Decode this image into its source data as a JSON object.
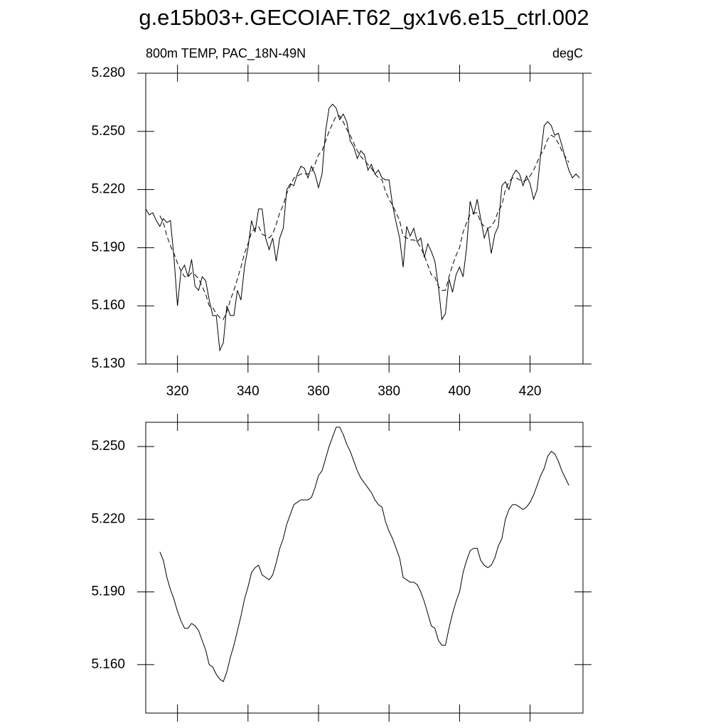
{
  "chart_data": [
    {
      "type": "line",
      "title": "g.e15b03+.GECOIAF.T62_gx1v6.e15_ctrl.002",
      "subtitle_left": "800m TEMP, PAC_18N-49N",
      "subtitle_right": "degC",
      "x": [
        311,
        312,
        313,
        314,
        315,
        316,
        317,
        318,
        319,
        320,
        321,
        322,
        323,
        324,
        325,
        326,
        327,
        328,
        329,
        330,
        331,
        332,
        333,
        334,
        335,
        336,
        337,
        338,
        339,
        340,
        341,
        342,
        343,
        344,
        345,
        346,
        347,
        348,
        349,
        350,
        351,
        352,
        353,
        354,
        355,
        356,
        357,
        358,
        359,
        360,
        361,
        362,
        363,
        364,
        365,
        366,
        367,
        368,
        369,
        370,
        371,
        372,
        373,
        374,
        375,
        376,
        377,
        378,
        379,
        380,
        381,
        382,
        383,
        384,
        385,
        386,
        387,
        388,
        389,
        390,
        391,
        392,
        393,
        394,
        395,
        396,
        397,
        398,
        399,
        400,
        401,
        402,
        403,
        404,
        405,
        406,
        407,
        408,
        409,
        410,
        411,
        412,
        413,
        414,
        415,
        416,
        417,
        418,
        419,
        420,
        421,
        422,
        423,
        424,
        425,
        426,
        427,
        428,
        429,
        430,
        431,
        432,
        433,
        434
      ],
      "series": [
        {
          "color": "#000000",
          "dashed": false,
          "values": [
            5.21,
            5.207,
            5.208,
            5.204,
            5.201,
            5.205,
            5.203,
            5.204,
            5.185,
            5.16,
            5.178,
            5.181,
            5.175,
            5.184,
            5.17,
            5.168,
            5.175,
            5.173,
            5.163,
            5.155,
            5.155,
            5.137,
            5.141,
            5.16,
            5.155,
            5.155,
            5.168,
            5.163,
            5.18,
            5.19,
            5.204,
            5.198,
            5.21,
            5.21,
            5.195,
            5.189,
            5.195,
            5.183,
            5.195,
            5.2,
            5.22,
            5.223,
            5.222,
            5.228,
            5.232,
            5.231,
            5.226,
            5.232,
            5.228,
            5.221,
            5.228,
            5.25,
            5.262,
            5.264,
            5.262,
            5.256,
            5.259,
            5.255,
            5.245,
            5.242,
            5.236,
            5.24,
            5.238,
            5.23,
            5.233,
            5.228,
            5.23,
            5.226,
            5.225,
            5.225,
            5.212,
            5.203,
            5.195,
            5.18,
            5.201,
            5.196,
            5.2,
            5.193,
            5.195,
            5.185,
            5.192,
            5.188,
            5.183,
            5.17,
            5.153,
            5.156,
            5.174,
            5.167,
            5.176,
            5.18,
            5.175,
            5.19,
            5.214,
            5.207,
            5.215,
            5.205,
            5.195,
            5.2,
            5.187,
            5.197,
            5.201,
            5.222,
            5.224,
            5.22,
            5.227,
            5.23,
            5.228,
            5.222,
            5.227,
            5.223,
            5.215,
            5.22,
            5.238,
            5.253,
            5.255,
            5.253,
            5.248,
            5.249,
            5.243,
            5.236,
            5.23,
            5.226,
            5.228,
            5.226
          ]
        },
        {
          "color": "#000000",
          "dashed": true,
          "values": [
            null,
            null,
            null,
            null,
            5.2065,
            5.203,
            5.196,
            5.191,
            5.187,
            5.182,
            5.178,
            5.175,
            5.175,
            5.177,
            5.176,
            5.174,
            5.17,
            5.166,
            5.16,
            5.159,
            5.156,
            5.154,
            5.153,
            5.157,
            5.163,
            5.168,
            5.174,
            5.18,
            5.187,
            5.192,
            5.198,
            5.2,
            5.201,
            5.197,
            5.196,
            5.195,
            5.197,
            5.202,
            5.208,
            5.212,
            5.218,
            5.222,
            5.226,
            5.227,
            5.228,
            5.228,
            5.228,
            5.229,
            5.233,
            5.238,
            5.24,
            5.245,
            5.25,
            5.254,
            5.258,
            5.258,
            5.255,
            5.251,
            5.248,
            5.244,
            5.24,
            5.237,
            5.235,
            5.233,
            5.231,
            5.228,
            5.226,
            5.225,
            5.219,
            5.215,
            5.212,
            5.208,
            5.204,
            5.196,
            5.195,
            5.194,
            5.194,
            5.193,
            5.19,
            5.186,
            5.181,
            5.176,
            5.175,
            5.17,
            5.168,
            5.168,
            5.175,
            5.181,
            5.186,
            5.19,
            5.198,
            5.203,
            5.207,
            5.208,
            5.208,
            5.203,
            5.201,
            5.2,
            5.201,
            5.204,
            5.209,
            5.212,
            5.22,
            5.224,
            5.226,
            5.226,
            5.225,
            5.224,
            5.225,
            5.227,
            5.23,
            5.234,
            5.238,
            5.241,
            5.246,
            5.248,
            5.247,
            5.244,
            5.24,
            5.237,
            5.234,
            null,
            null,
            null
          ]
        }
      ],
      "xlim": [
        311,
        435
      ],
      "xticks": [
        320,
        340,
        360,
        380,
        400,
        420
      ],
      "ylim": [
        5.13,
        5.28
      ],
      "yticks": [
        {
          "value": 5.13,
          "label": "5.130"
        },
        {
          "value": 5.16,
          "label": "5.160"
        },
        {
          "value": 5.19,
          "label": "5.190"
        },
        {
          "value": 5.22,
          "label": "5.220"
        },
        {
          "value": 5.25,
          "label": "5.250"
        },
        {
          "value": 5.28,
          "label": "5.280"
        }
      ],
      "grid": false
    },
    {
      "type": "line",
      "x": [
        311,
        312,
        313,
        314,
        315,
        316,
        317,
        318,
        319,
        320,
        321,
        322,
        323,
        324,
        325,
        326,
        327,
        328,
        329,
        330,
        331,
        332,
        333,
        334,
        335,
        336,
        337,
        338,
        339,
        340,
        341,
        342,
        343,
        344,
        345,
        346,
        347,
        348,
        349,
        350,
        351,
        352,
        353,
        354,
        355,
        356,
        357,
        358,
        359,
        360,
        361,
        362,
        363,
        364,
        365,
        366,
        367,
        368,
        369,
        370,
        371,
        372,
        373,
        374,
        375,
        376,
        377,
        378,
        379,
        380,
        381,
        382,
        383,
        384,
        385,
        386,
        387,
        388,
        389,
        390,
        391,
        392,
        393,
        394,
        395,
        396,
        397,
        398,
        399,
        400,
        401,
        402,
        403,
        404,
        405,
        406,
        407,
        408,
        409,
        410,
        411,
        412,
        413,
        414,
        415,
        416,
        417,
        418,
        419,
        420,
        421,
        422,
        423,
        424,
        425,
        426,
        427,
        428,
        429,
        430,
        431,
        432,
        433,
        434
      ],
      "series": [
        {
          "color": "#000000",
          "dashed": false,
          "values": [
            null,
            null,
            null,
            null,
            5.2065,
            5.203,
            5.196,
            5.191,
            5.187,
            5.182,
            5.178,
            5.175,
            5.175,
            5.177,
            5.176,
            5.174,
            5.17,
            5.166,
            5.16,
            5.159,
            5.156,
            5.154,
            5.153,
            5.157,
            5.163,
            5.168,
            5.174,
            5.18,
            5.187,
            5.192,
            5.198,
            5.2,
            5.201,
            5.197,
            5.196,
            5.195,
            5.197,
            5.202,
            5.208,
            5.212,
            5.218,
            5.222,
            5.226,
            5.227,
            5.228,
            5.228,
            5.228,
            5.229,
            5.233,
            5.238,
            5.24,
            5.245,
            5.25,
            5.254,
            5.258,
            5.258,
            5.255,
            5.251,
            5.248,
            5.244,
            5.24,
            5.237,
            5.235,
            5.233,
            5.231,
            5.228,
            5.226,
            5.225,
            5.219,
            5.215,
            5.212,
            5.208,
            5.204,
            5.196,
            5.195,
            5.194,
            5.194,
            5.193,
            5.19,
            5.186,
            5.181,
            5.176,
            5.175,
            5.17,
            5.168,
            5.168,
            5.175,
            5.181,
            5.186,
            5.19,
            5.198,
            5.203,
            5.207,
            5.208,
            5.208,
            5.203,
            5.201,
            5.2,
            5.201,
            5.204,
            5.209,
            5.212,
            5.22,
            5.224,
            5.226,
            5.226,
            5.225,
            5.224,
            5.225,
            5.227,
            5.23,
            5.234,
            5.238,
            5.241,
            5.246,
            5.248,
            5.247,
            5.244,
            5.24,
            5.237,
            5.234,
            null,
            null,
            null
          ]
        }
      ],
      "xlim": [
        311,
        435
      ],
      "ylim": [
        5.14,
        5.26
      ],
      "yticks": [
        {
          "value": 5.16,
          "label": "5.160"
        },
        {
          "value": 5.19,
          "label": "5.190"
        },
        {
          "value": 5.22,
          "label": "5.220"
        },
        {
          "value": 5.25,
          "label": "5.250"
        }
      ],
      "grid": false
    }
  ]
}
